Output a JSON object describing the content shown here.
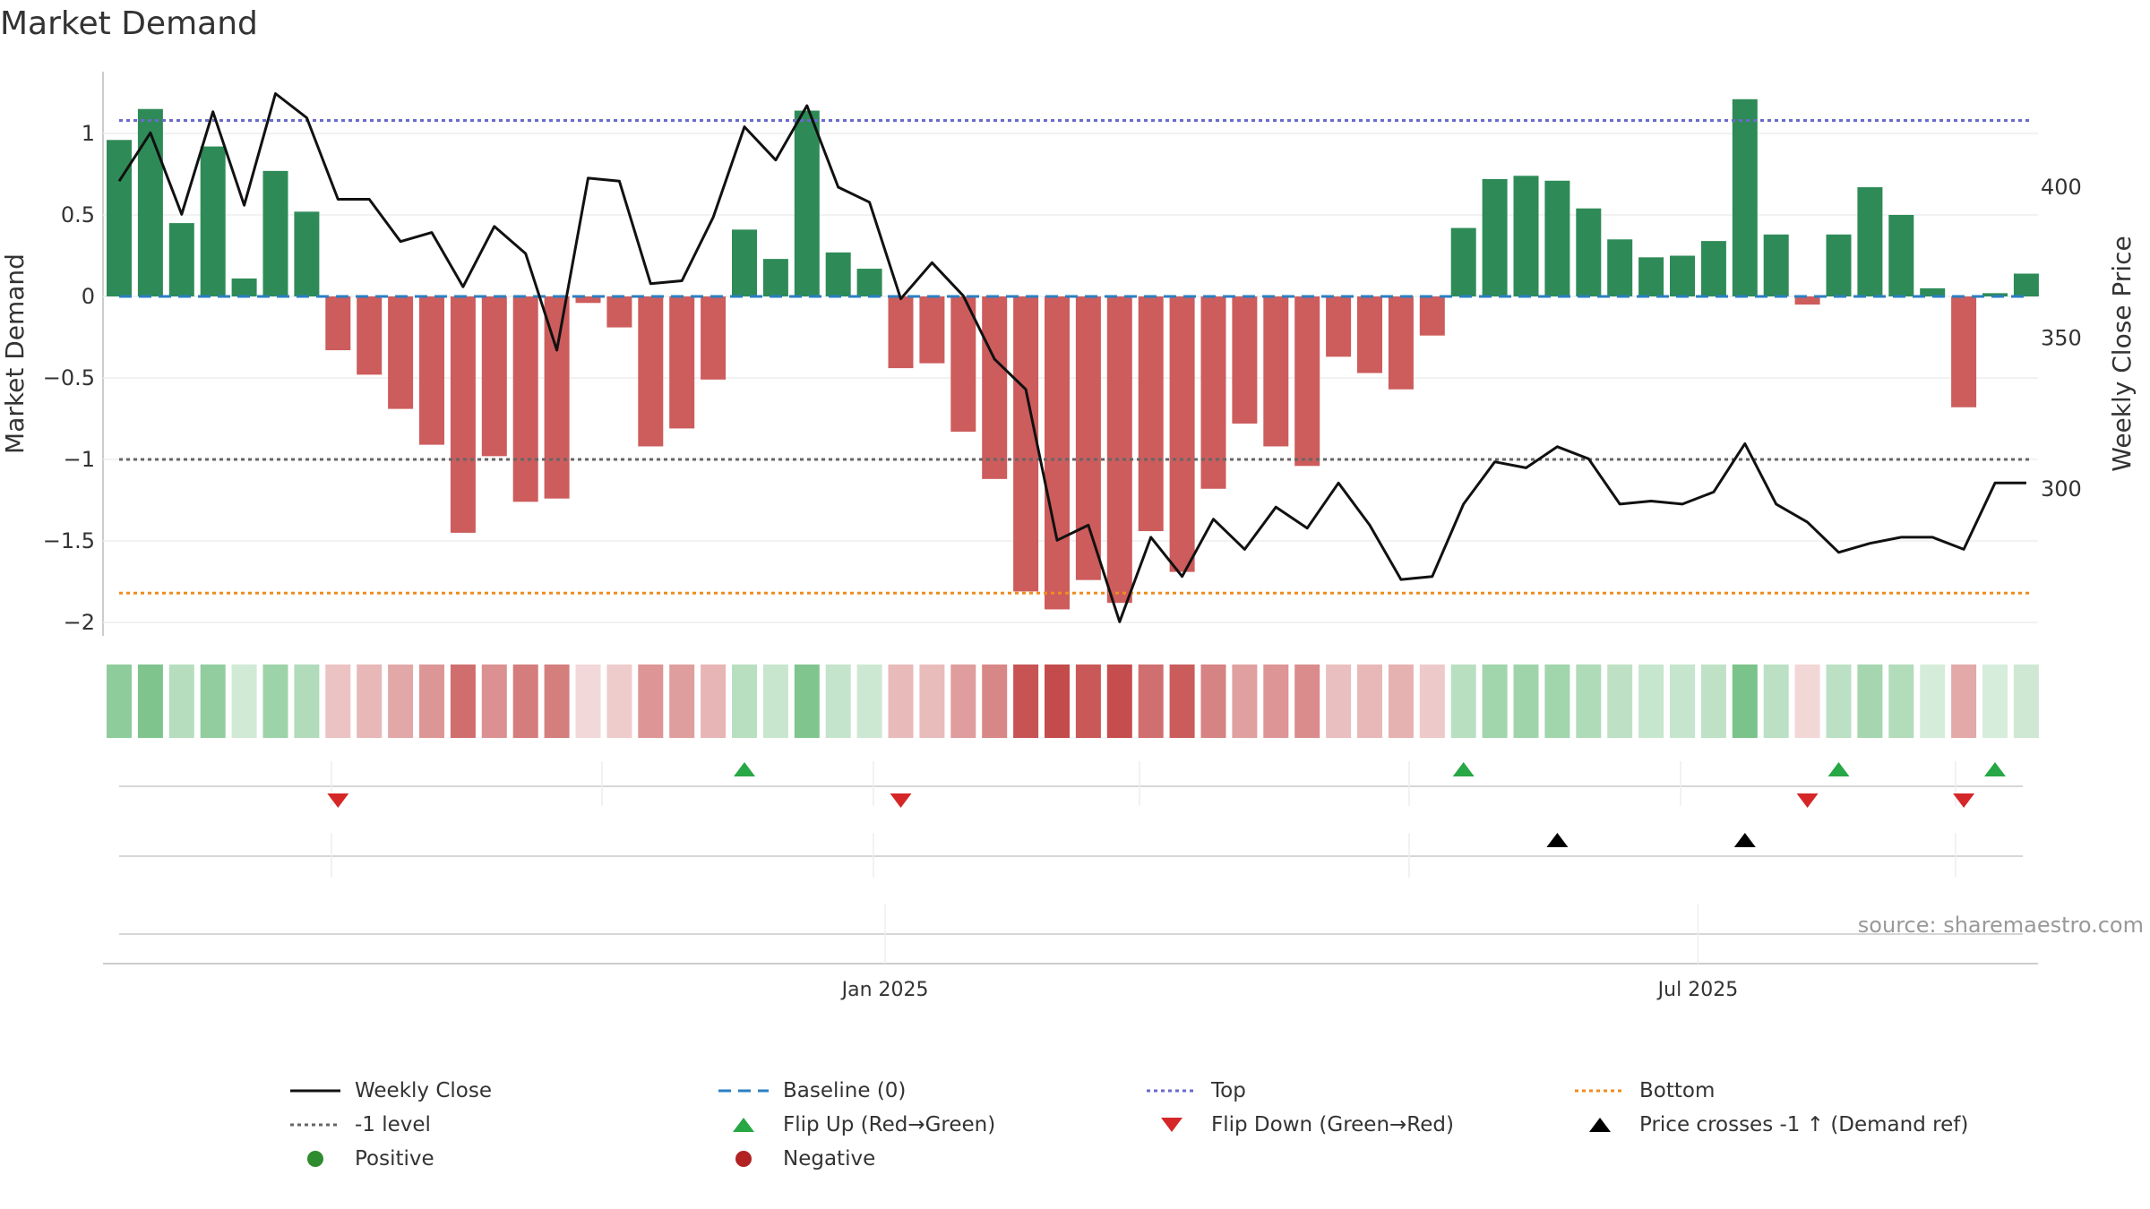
{
  "chart_data": {
    "type": "bar",
    "title": "Market Demand",
    "ylabel": "Market Demand",
    "y2label": "Weekly Close Price",
    "ylim": [
      -2.1,
      1.35
    ],
    "y2lim": [
      255,
      440
    ],
    "yticks": [
      "1",
      "0.5",
      "0",
      "−0.5",
      "−1",
      "−1.5",
      "−2"
    ],
    "ytick_values": [
      1,
      0.5,
      0,
      -0.5,
      -1,
      -1.5,
      -2
    ],
    "y2ticks": [
      "400",
      "350",
      "300"
    ],
    "y2tick_values": [
      400,
      350,
      300
    ],
    "xticks": [
      {
        "label": "Jan 2025",
        "index": 24.5
      },
      {
        "label": "Jul 2025",
        "index": 50.5
      }
    ],
    "source": "source: sharemaestro.com",
    "grid": true,
    "reference_lines": {
      "top": 1.08,
      "bottom": -1.82,
      "minus_one": -1,
      "baseline": 0
    },
    "colors": {
      "positive": "#2e8b57",
      "negative": "#cd5c5c",
      "close": "#111111",
      "top": "#6a6acd",
      "bottom": "#f08c1e",
      "minus_one": "#666666",
      "baseline": "#2b7fc2"
    },
    "demand": [
      0.96,
      1.15,
      0.45,
      0.92,
      0.11,
      0.77,
      0.52,
      -0.33,
      -0.48,
      -0.69,
      -0.91,
      -1.45,
      -0.98,
      -1.26,
      -1.24,
      -0.04,
      -0.19,
      -0.92,
      -0.81,
      -0.51,
      0.41,
      0.23,
      1.14,
      0.27,
      0.17,
      -0.44,
      -0.41,
      -0.83,
      -1.12,
      -1.81,
      -1.92,
      -1.74,
      -1.88,
      -1.44,
      -1.69,
      -1.18,
      -0.78,
      -0.92,
      -1.04,
      -0.37,
      -0.47,
      -0.57,
      -0.24,
      0.42,
      0.72,
      0.74,
      0.71,
      0.54,
      0.35,
      0.24,
      0.25,
      0.34,
      1.21,
      0.38,
      -0.05,
      0.38,
      0.67,
      0.5,
      0.05,
      -0.68,
      0.02,
      0.14
    ],
    "weekly_close": [
      402,
      418,
      391,
      425,
      394,
      431,
      423,
      396,
      396,
      382,
      385,
      367,
      387,
      378,
      346,
      403,
      402,
      368,
      369,
      390,
      420,
      409,
      427,
      400,
      395,
      363,
      375,
      364,
      343,
      333,
      283,
      288,
      256,
      284,
      271,
      290,
      280,
      294,
      287,
      302,
      288,
      270,
      271,
      295,
      309,
      307,
      314,
      310,
      295,
      296,
      295,
      299,
      315,
      295,
      289,
      279,
      282,
      284,
      284,
      280,
      302,
      302
    ],
    "flip_up": [
      20,
      43,
      55,
      60
    ],
    "flip_down": [
      7,
      25,
      54,
      59
    ],
    "price_crosses": [
      46,
      52
    ],
    "legend": [
      {
        "label": "Weekly Close",
        "icon": "solid-line"
      },
      {
        "label": "Baseline (0)",
        "icon": "dashed-line"
      },
      {
        "label": "Top",
        "icon": "dotted-line"
      },
      {
        "label": "Bottom",
        "icon": "dotted-line"
      },
      {
        "label": "-1 level",
        "icon": "dotted-line"
      },
      {
        "label": "Flip Up (Red→Green)",
        "icon": "triangle-up"
      },
      {
        "label": "Flip Down (Green→Red)",
        "icon": "triangle-down"
      },
      {
        "label": "Price crosses -1 ↑ (Demand ref)",
        "icon": "triangle-up"
      },
      {
        "label": "Positive",
        "icon": "circle"
      },
      {
        "label": "Negative",
        "icon": "circle"
      }
    ]
  }
}
